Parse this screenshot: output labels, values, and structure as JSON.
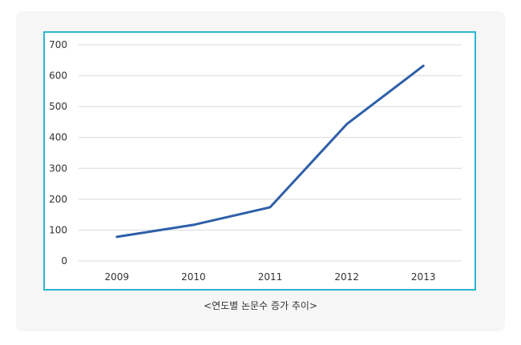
{
  "caption": "<연도별 논문수 증가 추이>",
  "colors": {
    "frame_border": "#2cb5d2",
    "line": "#2e5fa8",
    "grid": "#d9d9d9",
    "card_background": "#f6f6f6"
  },
  "chart_data": {
    "type": "line",
    "categories": [
      "2009",
      "2010",
      "2011",
      "2012",
      "2013"
    ],
    "series": [
      {
        "values": [
          78,
          117,
          174,
          443,
          632
        ]
      }
    ],
    "title": "",
    "xlabel": "",
    "ylabel": "",
    "ylim": [
      0,
      700
    ],
    "yticks": [
      0,
      100,
      200,
      300,
      400,
      500,
      600,
      700
    ],
    "grid": true,
    "legend": "none"
  }
}
